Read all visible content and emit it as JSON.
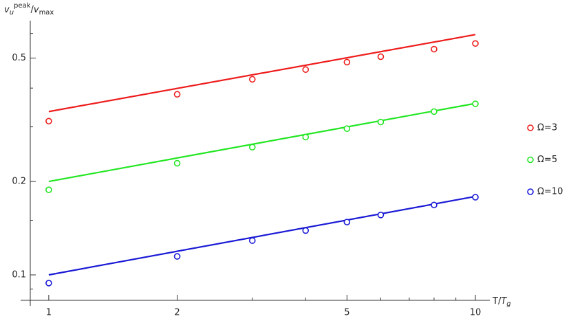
{
  "chart_data": {
    "type": "scatter",
    "x_label": [
      "T/",
      "T",
      "g"
    ],
    "y_label": [
      "v",
      "u",
      "peak",
      "/",
      "v",
      "max"
    ],
    "x": [
      1,
      2,
      3,
      4,
      5,
      6,
      8,
      10
    ],
    "series": [
      {
        "name": "Ω=3",
        "color": "#ee1c1c",
        "values": [
          0.313,
          0.382,
          0.427,
          0.459,
          0.485,
          0.505,
          0.534,
          0.557
        ],
        "fit": {
          "x": [
            1,
            10
          ],
          "values": [
            0.336,
            0.595
          ]
        }
      },
      {
        "name": "Ω=5",
        "color": "#22e622",
        "values": [
          0.188,
          0.229,
          0.258,
          0.278,
          0.296,
          0.311,
          0.336,
          0.356
        ],
        "fit": {
          "x": [
            1,
            10
          ],
          "values": [
            0.2,
            0.357
          ]
        }
      },
      {
        "name": "Ω=10",
        "color": "#1a1ad6",
        "values": [
          0.0941,
          0.1147,
          0.129,
          0.139,
          0.148,
          0.156,
          0.168,
          0.178
        ],
        "fit": {
          "x": [
            1,
            10
          ],
          "values": [
            0.1,
            0.179
          ]
        }
      }
    ],
    "xscale": "log",
    "yscale": "log",
    "xlim": [
      0.905,
      10.73
    ],
    "ylim": [
      0.0828,
      0.66
    ],
    "xticks": [
      1,
      2,
      5,
      10
    ],
    "yticks": [
      0.1,
      0.2,
      0.5
    ],
    "xminor": [
      3,
      4,
      6,
      7,
      8,
      9
    ],
    "yminor": [
      0.09,
      0.15,
      0.3,
      0.4,
      0.6
    ],
    "legend": "right"
  }
}
